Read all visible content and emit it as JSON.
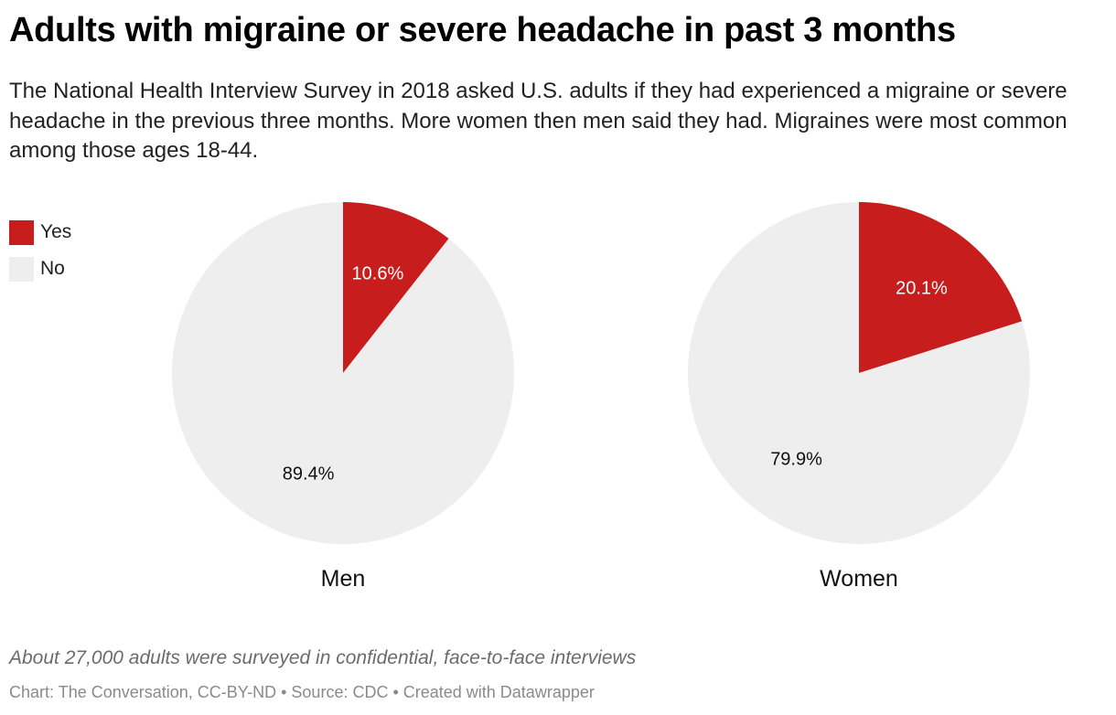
{
  "chart_data": {
    "type": "pie",
    "title": "Adults with migraine or severe headache in past 3 months",
    "subtitle": "The National Health Interview Survey in 2018 asked U.S. adults if they had experienced a migraine or severe headache in the previous three months. More women then men said they had. Migraines were most common among those ages 18-44.",
    "legend": [
      {
        "label": "Yes",
        "color": "#c71e1d"
      },
      {
        "label": "No",
        "color": "#eeeeee"
      }
    ],
    "charts": [
      {
        "name": "Men",
        "slices": [
          {
            "label": "Yes",
            "value": 10.6,
            "display": "10.6%"
          },
          {
            "label": "No",
            "value": 89.4,
            "display": "89.4%"
          }
        ]
      },
      {
        "name": "Women",
        "slices": [
          {
            "label": "Yes",
            "value": 20.1,
            "display": "20.1%"
          },
          {
            "label": "No",
            "value": 79.9,
            "display": "79.9%"
          }
        ]
      }
    ],
    "notes": "About 27,000 adults were surveyed in confidential, face-to-face interviews",
    "footer": "Chart: The Conversation, CC-BY-ND • Source: CDC • Created with Datawrapper"
  }
}
